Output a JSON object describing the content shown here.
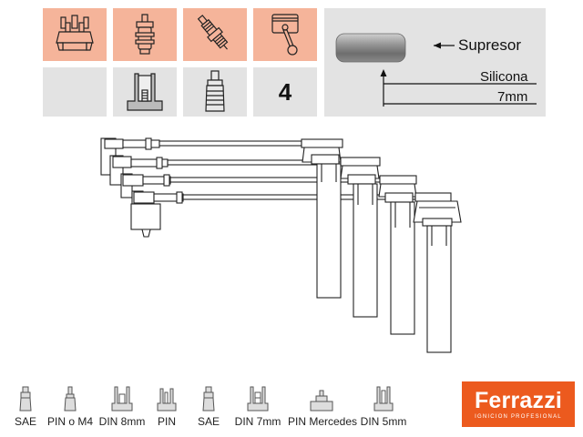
{
  "spec_grid": {
    "row1": [
      {
        "icon": "distributor-cap-icon"
      },
      {
        "icon": "ignition-coil-icon"
      },
      {
        "icon": "spark-plug-icon"
      },
      {
        "icon": "piston-icon"
      }
    ],
    "row2": [
      {
        "icon": "blank"
      },
      {
        "icon": "terminal-cross-section-icon"
      },
      {
        "icon": "plug-boot-icon"
      },
      {
        "icon": "cylinder-count",
        "value": "4"
      }
    ]
  },
  "spec_panel": {
    "suppressor_label": "Supresor",
    "material": "Silicona",
    "diameter": "7mm"
  },
  "legend": [
    {
      "label": "SAE",
      "icon": "sae-terminal-icon"
    },
    {
      "label": "PIN o M4",
      "icon": "pin-m4-terminal-icon"
    },
    {
      "label": "DIN 8mm",
      "icon": "din-8mm-terminal-icon"
    },
    {
      "label": "PIN",
      "icon": "pin-terminal-icon"
    },
    {
      "label": "SAE",
      "icon": "sae-terminal-icon"
    },
    {
      "label": "DIN 7mm",
      "icon": "din-7mm-terminal-icon"
    },
    {
      "label": "PIN Mercedes",
      "icon": "pin-mercedes-terminal-icon"
    },
    {
      "label": "DIN 5mm",
      "icon": "din-5mm-terminal-icon"
    }
  ],
  "brand": {
    "name": "Ferrazzi",
    "tagline": "IGNICION PROFESIONAL",
    "color": "#ec5a1e"
  },
  "colors": {
    "peach": "#f5b49a",
    "gray_panel": "#e3e3e3",
    "line": "#333333"
  }
}
